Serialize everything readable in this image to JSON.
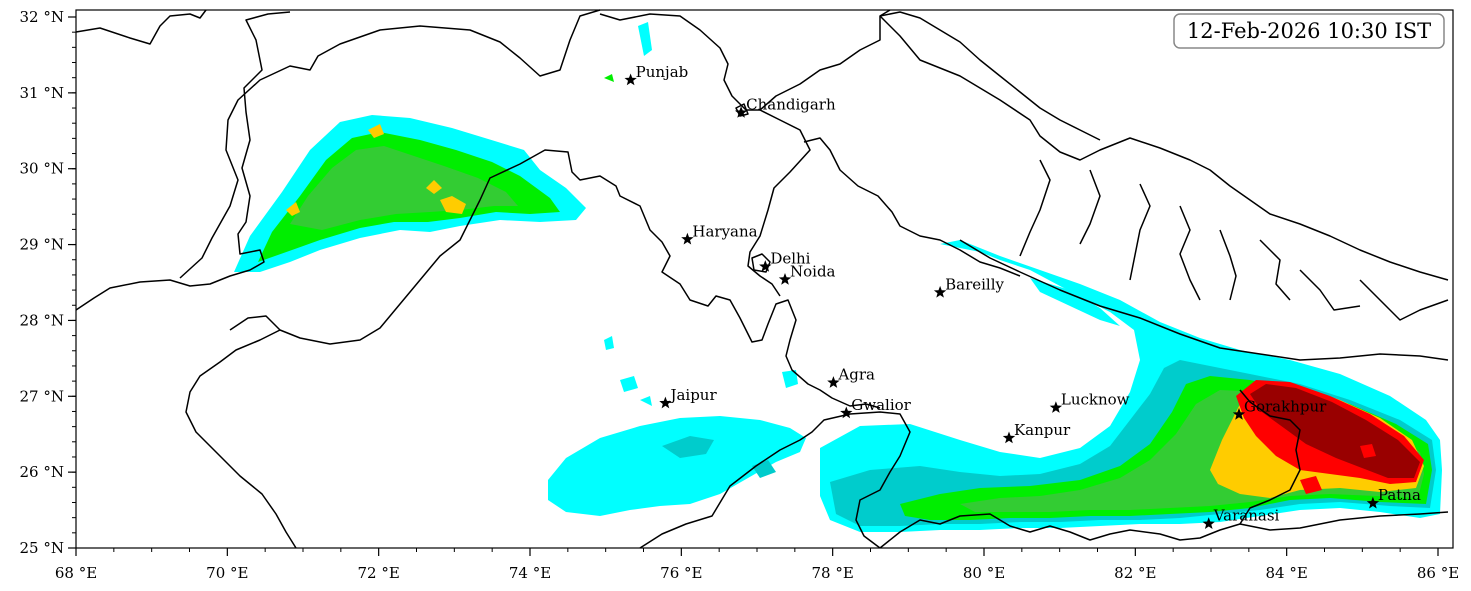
{
  "timestamp": "12-Feb-2026 10:30 IST",
  "axes": {
    "x_ticks": [
      {
        "value": 68,
        "label": "68 °E"
      },
      {
        "value": 70,
        "label": "70 °E"
      },
      {
        "value": 72,
        "label": "72 °E"
      },
      {
        "value": 74,
        "label": "74 °E"
      },
      {
        "value": 76,
        "label": "76 °E"
      },
      {
        "value": 78,
        "label": "78 °E"
      },
      {
        "value": 80,
        "label": "80 °E"
      },
      {
        "value": 82,
        "label": "82 °E"
      },
      {
        "value": 84,
        "label": "84 °E"
      },
      {
        "value": 86,
        "label": "86 °E"
      }
    ],
    "y_ticks": [
      {
        "value": 25,
        "label": "25 °N"
      },
      {
        "value": 26,
        "label": "26 °N"
      },
      {
        "value": 27,
        "label": "27 °N"
      },
      {
        "value": 28,
        "label": "28 °N"
      },
      {
        "value": 29,
        "label": "29 °N"
      },
      {
        "value": 30,
        "label": "30 °N"
      },
      {
        "value": 31,
        "label": "31 °N"
      },
      {
        "value": 32,
        "label": "32 °N"
      }
    ],
    "lon_range": [
      68,
      86.2
    ],
    "lat_range": [
      25,
      32.1
    ]
  },
  "cities": [
    {
      "name": "Punjab",
      "lon": 75.33,
      "lat": 31.17
    },
    {
      "name": "Chandigarh",
      "lon": 76.79,
      "lat": 30.74
    },
    {
      "name": "Haryana",
      "lon": 76.08,
      "lat": 29.07
    },
    {
      "name": "Delhi",
      "lon": 77.11,
      "lat": 28.71
    },
    {
      "name": "Noida",
      "lon": 77.37,
      "lat": 28.54
    },
    {
      "name": "Bareilly",
      "lon": 79.42,
      "lat": 28.37
    },
    {
      "name": "Agra",
      "lon": 78.01,
      "lat": 27.18
    },
    {
      "name": "Jaipur",
      "lon": 75.79,
      "lat": 26.91
    },
    {
      "name": "Gwalior",
      "lon": 78.18,
      "lat": 26.78
    },
    {
      "name": "Lucknow",
      "lon": 80.95,
      "lat": 26.85
    },
    {
      "name": "Kanpur",
      "lon": 80.33,
      "lat": 26.45
    },
    {
      "name": "Gorakhpur",
      "lon": 83.37,
      "lat": 26.76
    },
    {
      "name": "Patna",
      "lon": 85.14,
      "lat": 25.59
    },
    {
      "name": "Varanasi",
      "lon": 82.97,
      "lat": 25.32
    }
  ],
  "colors": {
    "level1": "#00ffff",
    "level2": "#00cccc",
    "level3": "#00ee00",
    "level4": "#33cc33",
    "level5": "#ffcc00",
    "level6": "#ff0000",
    "level7": "#990000",
    "border": "#000000"
  }
}
